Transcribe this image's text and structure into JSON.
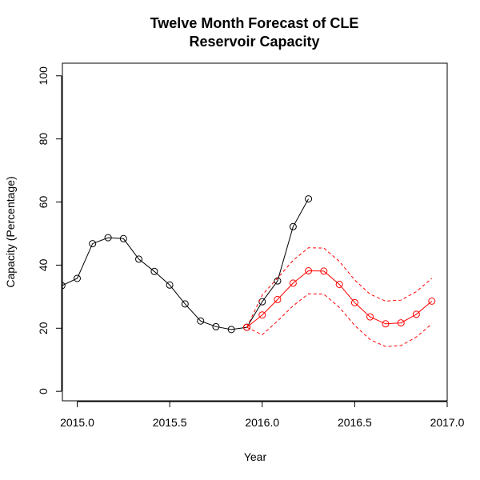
{
  "chart_data": {
    "type": "line",
    "title": [
      "Twelve Month Forecast of CLE",
      "Reservoir Capacity"
    ],
    "xlabel": "Year",
    "ylabel": "Capacity (Percentage)",
    "xlim": [
      2014.92,
      2017.0
    ],
    "ylim": [
      -3,
      104
    ],
    "x_ticks": [
      2015.0,
      2015.5,
      2016.0,
      2016.5,
      2017.0
    ],
    "x_tick_labels": [
      "2015.0",
      "2015.5",
      "2016.0",
      "2016.5",
      "2017.0"
    ],
    "y_ticks": [
      0,
      20,
      40,
      60,
      80,
      100
    ],
    "y_tick_labels": [
      "0",
      "20",
      "40",
      "60",
      "80",
      "100"
    ],
    "grid": false,
    "series": [
      {
        "color": "#000000",
        "style": "solid",
        "marker": "circle",
        "x": [
          2014.917,
          2015.0,
          2015.083,
          2015.167,
          2015.25,
          2015.333,
          2015.417,
          2015.5,
          2015.583,
          2015.667,
          2015.75,
          2015.833,
          2015.917,
          2016.0,
          2016.083,
          2016.167,
          2016.25
        ],
        "y": [
          33.5,
          35.8,
          46.8,
          48.7,
          48.4,
          41.9,
          38.0,
          33.7,
          27.7,
          22.3,
          20.5,
          19.6,
          20.3,
          28.4,
          35.0,
          52.2,
          61.0
        ]
      },
      {
        "color": "#ff0000",
        "style": "solid",
        "marker": "circle",
        "x": [
          2015.917,
          2016.0,
          2016.083,
          2016.167,
          2016.25,
          2016.333,
          2016.417,
          2016.5,
          2016.583,
          2016.667,
          2016.75,
          2016.833,
          2016.917
        ],
        "y": [
          20.3,
          24.2,
          29.1,
          34.3,
          38.2,
          38.1,
          33.9,
          28.1,
          23.6,
          21.4,
          21.7,
          24.4,
          28.6
        ]
      },
      {
        "color": "#ff0000",
        "style": "dashed",
        "marker": "none",
        "x": [
          2015.917,
          2016.0,
          2016.083,
          2016.167,
          2016.25,
          2016.333,
          2016.417,
          2016.5,
          2016.583,
          2016.667,
          2016.75,
          2016.833,
          2016.917
        ],
        "y": [
          20.3,
          30.5,
          35.9,
          41.5,
          45.5,
          45.4,
          41.2,
          35.3,
          30.8,
          28.6,
          28.9,
          31.6,
          35.8
        ]
      },
      {
        "color": "#ff0000",
        "style": "dashed",
        "marker": "none",
        "x": [
          2015.917,
          2016.0,
          2016.083,
          2016.167,
          2016.25,
          2016.333,
          2016.417,
          2016.5,
          2016.583,
          2016.667,
          2016.75,
          2016.833,
          2016.917
        ],
        "y": [
          20.3,
          17.9,
          22.3,
          27.1,
          30.9,
          30.8,
          26.6,
          20.9,
          16.4,
          14.2,
          14.5,
          17.2,
          21.4
        ]
      }
    ]
  }
}
